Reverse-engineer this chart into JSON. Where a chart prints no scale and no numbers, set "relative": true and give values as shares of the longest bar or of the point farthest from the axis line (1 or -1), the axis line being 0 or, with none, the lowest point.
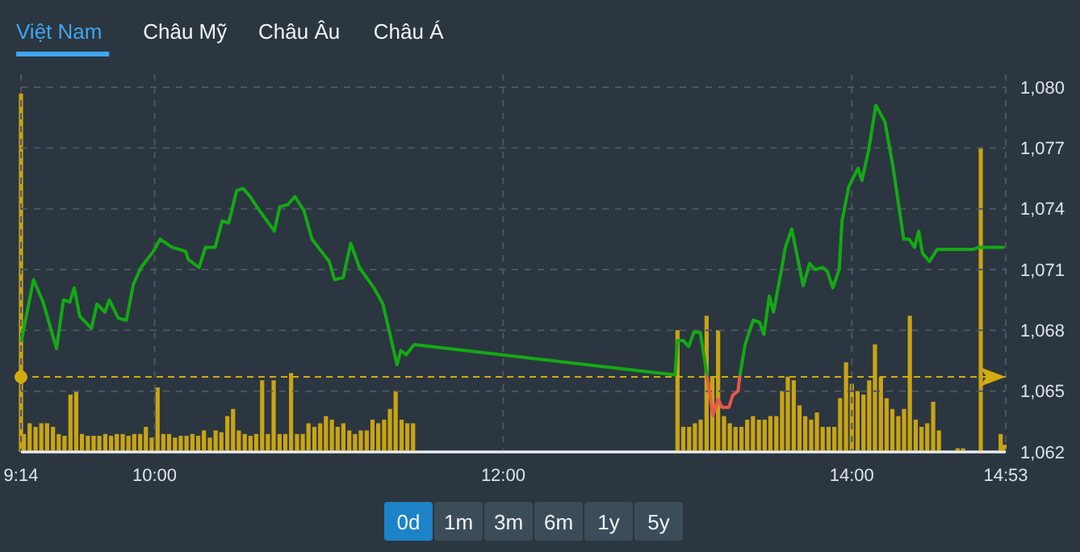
{
  "chart_data": [
    {
      "type": "line",
      "annotations": [
        "Việt Nam",
        "Châu Mỹ",
        "Châu Âu",
        "Châu Á",
        "0d",
        "1m",
        "3m",
        "6m",
        "1y",
        "5y"
      ],
      "xlim": [
        9.2333,
        14.8833
      ],
      "xticks": [
        {
          "value": 9.2333,
          "label": "9:14"
        },
        {
          "value": 10,
          "label": "10:00"
        },
        {
          "value": 12,
          "label": "12:00"
        },
        {
          "value": 14,
          "label": "14:00"
        },
        {
          "value": 14.8833,
          "label": "14:53"
        }
      ],
      "ylim": [
        1062,
        1080
      ],
      "yticks": [
        {
          "value": 1062,
          "label": "1,062"
        },
        {
          "value": 1065,
          "label": "1,065"
        },
        {
          "value": 1068,
          "label": "1,068"
        },
        {
          "value": 1071,
          "label": "1,071"
        },
        {
          "value": 1074,
          "label": "1,074"
        },
        {
          "value": 1077,
          "label": "1,077"
        },
        {
          "value": 1080,
          "label": "1,080"
        }
      ],
      "grid": true,
      "ref_lines": [
        {
          "axis": "y",
          "value": 1065.7,
          "color": "#d4ac0d",
          "line_style": "dashed"
        }
      ],
      "series": [
        {
          "type": "line",
          "color": "#14a914",
          "x": [
            9.236,
            9.305,
            9.36,
            9.437,
            9.477,
            9.514,
            9.539,
            9.57,
            9.638,
            9.669,
            9.715,
            9.74,
            9.792,
            9.838,
            9.879,
            9.922,
            9.993,
            10.032,
            10.1,
            10.178,
            10.193,
            10.255,
            10.292,
            10.347,
            10.388,
            10.425,
            10.471,
            10.508,
            10.548,
            10.594,
            10.687,
            10.718,
            10.764,
            10.805,
            10.857,
            10.903,
            10.965,
            11.002,
            11.032,
            11.082,
            11.125,
            11.175,
            11.258,
            11.31,
            11.391,
            11.412,
            11.443,
            11.49,
            12.986,
            13.0,
            13.033,
            13.064,
            13.094,
            13.131,
            13.171,
            13.26,
            13.357,
            13.388,
            13.434,
            13.471,
            13.496,
            13.527,
            13.551,
            13.588,
            13.619,
            13.656,
            13.721,
            13.758,
            13.789,
            13.835,
            13.86,
            13.891,
            13.928,
            13.944,
            13.983,
            14.036,
            14.058,
            14.097,
            14.138,
            14.19,
            14.236,
            14.298,
            14.329,
            14.36,
            14.384,
            14.406,
            14.446,
            14.49,
            14.699,
            14.73,
            14.868
          ],
          "values": [
            1067.5,
            1070.5,
            1069.4,
            1067.1,
            1069.5,
            1069.4,
            1070.1,
            1068.7,
            1068.1,
            1069.3,
            1068.9,
            1069.5,
            1068.6,
            1068.5,
            1070.3,
            1071.1,
            1071.9,
            1072.5,
            1072.1,
            1071.9,
            1071.5,
            1071.1,
            1072.1,
            1072.1,
            1073.4,
            1073.3,
            1074.9,
            1075.0,
            1074.6,
            1074.0,
            1072.9,
            1074.1,
            1074.2,
            1074.6,
            1073.9,
            1072.5,
            1071.8,
            1071.4,
            1070.5,
            1070.6,
            1072.3,
            1071.1,
            1070.1,
            1069.3,
            1066.3,
            1067.0,
            1066.8,
            1067.3,
            1065.8,
            1067.5,
            1067.5,
            1067.2,
            1067.9,
            1067.9,
            1065.7,
            null,
            1065.7,
            1067.3,
            1068.5,
            1068.4,
            1067.8,
            1069.7,
            1068.9,
            1070.6,
            1072.1,
            1073.0,
            1070.2,
            1071.3,
            1071.0,
            1071.1,
            1070.9,
            1070.1,
            1071.0,
            1073.4,
            1075.1,
            1076.0,
            1075.4,
            1076.9,
            1079.1,
            1078.3,
            1076.1,
            1072.5,
            1072.5,
            1072.1,
            1072.9,
            1071.8,
            1071.4,
            1072.0,
            1072.0,
            1072.1,
            1072.1
          ]
        },
        {
          "type": "line",
          "color": "#e8584b",
          "x": [
            13.171,
            13.203,
            13.233,
            13.255,
            13.295,
            13.317,
            13.347,
            13.357
          ],
          "values": [
            1065.7,
            1063.8,
            1064.6,
            1064.2,
            1064.2,
            1064.8,
            1065.0,
            1065.7
          ]
        }
      ]
    },
    {
      "type": "bar",
      "relative": true,
      "color": "#c9a414",
      "xlim": [
        9.2333,
        14.8833
      ],
      "x": [
        9.2333,
        9.25,
        9.283,
        9.317,
        9.35,
        9.383,
        9.417,
        9.45,
        9.483,
        9.517,
        9.55,
        9.583,
        9.617,
        9.65,
        9.683,
        9.717,
        9.75,
        9.783,
        9.817,
        9.85,
        9.883,
        9.917,
        9.95,
        9.983,
        10.017,
        10.05,
        10.083,
        10.117,
        10.15,
        10.183,
        10.217,
        10.25,
        10.283,
        10.317,
        10.35,
        10.383,
        10.417,
        10.45,
        10.483,
        10.517,
        10.55,
        10.583,
        10.617,
        10.65,
        10.683,
        10.717,
        10.75,
        10.783,
        10.817,
        10.85,
        10.883,
        10.917,
        10.95,
        10.983,
        11.017,
        11.05,
        11.083,
        11.117,
        11.15,
        11.183,
        11.217,
        11.25,
        11.283,
        11.317,
        11.35,
        11.383,
        11.417,
        11.45,
        11.483,
        13,
        13.033,
        13.067,
        13.1,
        13.133,
        13.167,
        13.2,
        13.233,
        13.267,
        13.3,
        13.333,
        13.367,
        13.4,
        13.433,
        13.467,
        13.5,
        13.533,
        13.567,
        13.6,
        13.633,
        13.667,
        13.7,
        13.733,
        13.767,
        13.8,
        13.833,
        13.867,
        13.9,
        13.933,
        13.967,
        14,
        14.033,
        14.067,
        14.1,
        14.133,
        14.167,
        14.2,
        14.233,
        14.267,
        14.3,
        14.333,
        14.367,
        14.4,
        14.433,
        14.467,
        14.5,
        14.607,
        14.638,
        14.74,
        14.854,
        14.876
      ],
      "values": [
        1,
        0.05,
        0.08,
        0.07,
        0.08,
        0.08,
        0.07,
        0.05,
        0.045,
        0.16,
        0.17,
        0.05,
        0.045,
        0.045,
        0.045,
        0.05,
        0.045,
        0.05,
        0.05,
        0.045,
        0.05,
        0.05,
        0.07,
        0.04,
        0.18,
        0.05,
        0.05,
        0.04,
        0.045,
        0.045,
        0.05,
        0.045,
        0.06,
        0.04,
        0.06,
        0.055,
        0.1,
        0.12,
        0.06,
        0.05,
        0.045,
        0.05,
        0.2,
        0.05,
        0.2,
        0.05,
        0.05,
        0.22,
        0.05,
        0.05,
        0.08,
        0.07,
        0.08,
        0.1,
        0.09,
        0.07,
        0.08,
        0.06,
        0.05,
        0.06,
        0.06,
        0.09,
        0.08,
        0.09,
        0.12,
        0.17,
        0.09,
        0.08,
        0.08,
        0.34,
        0.07,
        0.07,
        0.08,
        0.09,
        0.38,
        0.21,
        0.34,
        0.1,
        0.08,
        0.07,
        0.07,
        0.09,
        0.1,
        0.09,
        0.09,
        0.1,
        0.1,
        0.17,
        0.21,
        0.2,
        0.13,
        0.1,
        0.09,
        0.11,
        0.07,
        0.07,
        0.07,
        0.15,
        0.25,
        0.19,
        0.17,
        0.16,
        0.2,
        0.3,
        0.21,
        0.15,
        0.12,
        0.1,
        0.12,
        0.38,
        0.09,
        0.07,
        0.08,
        0.14,
        0.06,
        0.01,
        0.01,
        0.85,
        0.05,
        0.02
      ]
    }
  ]
}
